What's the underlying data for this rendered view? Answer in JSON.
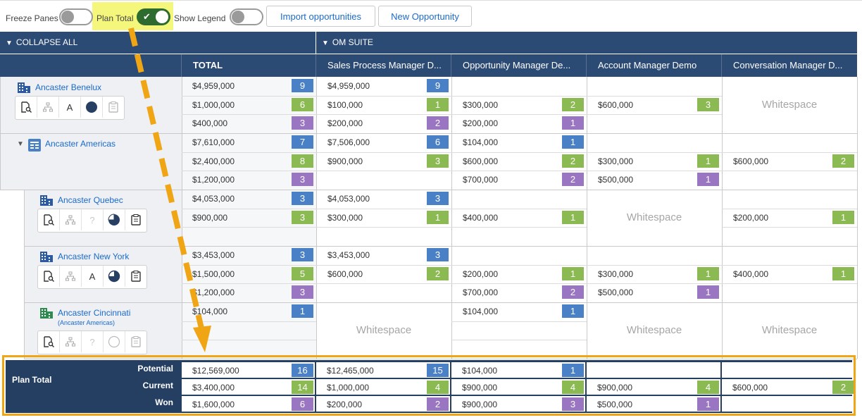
{
  "toolbar": {
    "freeze_panes_label": "Freeze Panes",
    "freeze_panes_on": false,
    "plan_total_label": "Plan Total",
    "plan_total_on": true,
    "show_legend_label": "Show Legend",
    "show_legend_on": false,
    "import_label": "Import opportunities",
    "new_opp_label": "New Opportunity"
  },
  "collapse_all_label": "COLLAPSE ALL",
  "suite_label": "OM SUITE",
  "columns": [
    "TOTAL",
    "Sales Process Manager D...",
    "Opportunity Manager De...",
    "Account Manager Demo",
    "Conversation Manager D..."
  ],
  "whitespace_label": "Whitespace",
  "accounts": [
    {
      "name": "Ancaster Benelux",
      "subtitle": "",
      "tool_letter": "A",
      "total": [
        {
          "v": "$4,959,000",
          "b": "9"
        },
        {
          "v": "$1,000,000",
          "b": "6"
        },
        {
          "v": "$400,000",
          "b": "3"
        }
      ],
      "products": [
        [
          {
            "v": "$4,959,000",
            "b": "9"
          },
          {
            "v": "$100,000",
            "b": "1"
          },
          {
            "v": "$200,000",
            "b": "2"
          }
        ],
        [
          {
            "v": "",
            "b": ""
          },
          {
            "v": "$300,000",
            "b": "2"
          },
          {
            "v": "$200,000",
            "b": "1"
          }
        ],
        [
          {
            "v": "",
            "b": ""
          },
          {
            "v": "$600,000",
            "b": "3"
          },
          {
            "v": "",
            "b": ""
          }
        ],
        null
      ]
    },
    {
      "name": "Ancaster Americas",
      "subtitle": "",
      "tool_letter": "",
      "total": [
        {
          "v": "$7,610,000",
          "b": "7"
        },
        {
          "v": "$2,400,000",
          "b": "8"
        },
        {
          "v": "$1,200,000",
          "b": "3"
        }
      ],
      "products": [
        [
          {
            "v": "$7,506,000",
            "b": "6"
          },
          {
            "v": "$900,000",
            "b": "3"
          },
          {
            "v": "",
            "b": ""
          }
        ],
        [
          {
            "v": "$104,000",
            "b": "1"
          },
          {
            "v": "$600,000",
            "b": "2"
          },
          {
            "v": "$700,000",
            "b": "2"
          }
        ],
        [
          {
            "v": "",
            "b": ""
          },
          {
            "v": "$300,000",
            "b": "1"
          },
          {
            "v": "$500,000",
            "b": "1"
          }
        ],
        [
          {
            "v": "",
            "b": ""
          },
          {
            "v": "$600,000",
            "b": "2"
          },
          {
            "v": "",
            "b": ""
          }
        ]
      ]
    },
    {
      "name": "Ancaster Quebec",
      "subtitle": "",
      "tool_letter": "?",
      "total": [
        {
          "v": "$4,053,000",
          "b": "3"
        },
        {
          "v": "$900,000",
          "b": "3"
        },
        {
          "v": "",
          "b": ""
        }
      ],
      "products": [
        [
          {
            "v": "$4,053,000",
            "b": "3"
          },
          {
            "v": "$300,000",
            "b": "1"
          },
          {
            "v": "",
            "b": ""
          }
        ],
        [
          {
            "v": "",
            "b": ""
          },
          {
            "v": "$400,000",
            "b": "1"
          },
          {
            "v": "",
            "b": ""
          }
        ],
        null,
        [
          {
            "v": "",
            "b": ""
          },
          {
            "v": "$200,000",
            "b": "1"
          },
          {
            "v": "",
            "b": ""
          }
        ]
      ]
    },
    {
      "name": "Ancaster New York",
      "subtitle": "",
      "tool_letter": "A",
      "total": [
        {
          "v": "$3,453,000",
          "b": "3"
        },
        {
          "v": "$1,500,000",
          "b": "5"
        },
        {
          "v": "$1,200,000",
          "b": "3"
        }
      ],
      "products": [
        [
          {
            "v": "$3,453,000",
            "b": "3"
          },
          {
            "v": "$600,000",
            "b": "2"
          },
          {
            "v": "",
            "b": ""
          }
        ],
        [
          {
            "v": "",
            "b": ""
          },
          {
            "v": "$200,000",
            "b": "1"
          },
          {
            "v": "$700,000",
            "b": "2"
          }
        ],
        [
          {
            "v": "",
            "b": ""
          },
          {
            "v": "$300,000",
            "b": "1"
          },
          {
            "v": "$500,000",
            "b": "1"
          }
        ],
        [
          {
            "v": "",
            "b": ""
          },
          {
            "v": "$400,000",
            "b": "1"
          },
          {
            "v": "",
            "b": ""
          }
        ]
      ]
    },
    {
      "name": "Ancaster Cincinnati",
      "subtitle": "(Ancaster Americas)",
      "tool_letter": "?",
      "total": [
        {
          "v": "$104,000",
          "b": "1"
        },
        {
          "v": "",
          "b": ""
        },
        {
          "v": "",
          "b": ""
        }
      ],
      "products": [
        null,
        [
          {
            "v": "$104,000",
            "b": "1"
          },
          {
            "v": "",
            "b": ""
          },
          {
            "v": "",
            "b": ""
          }
        ],
        null,
        null
      ]
    }
  ],
  "plan_total": {
    "label": "Plan Total",
    "row_labels": [
      "Potential",
      "Current",
      "Won"
    ],
    "cols": [
      [
        {
          "v": "$12,569,000",
          "b": "16"
        },
        {
          "v": "$3,400,000",
          "b": "14"
        },
        {
          "v": "$1,600,000",
          "b": "6"
        }
      ],
      [
        {
          "v": "$12,465,000",
          "b": "15"
        },
        {
          "v": "$1,000,000",
          "b": "4"
        },
        {
          "v": "$200,000",
          "b": "2"
        }
      ],
      [
        {
          "v": "$104,000",
          "b": "1"
        },
        {
          "v": "$900,000",
          "b": "4"
        },
        {
          "v": "$900,000",
          "b": "3"
        }
      ],
      [
        {
          "v": "",
          "b": ""
        },
        {
          "v": "$900,000",
          "b": "4"
        },
        {
          "v": "$500,000",
          "b": "1"
        }
      ],
      [
        {
          "v": "",
          "b": ""
        },
        {
          "v": "$600,000",
          "b": "2"
        },
        {
          "v": "",
          "b": ""
        }
      ]
    ]
  },
  "colors": {
    "header": "#2b4a74",
    "potential": "#4a80c5",
    "current": "#8bba52",
    "won": "#9a75c1",
    "highlight": "#f4f77b",
    "annotation": "#f0a614"
  }
}
